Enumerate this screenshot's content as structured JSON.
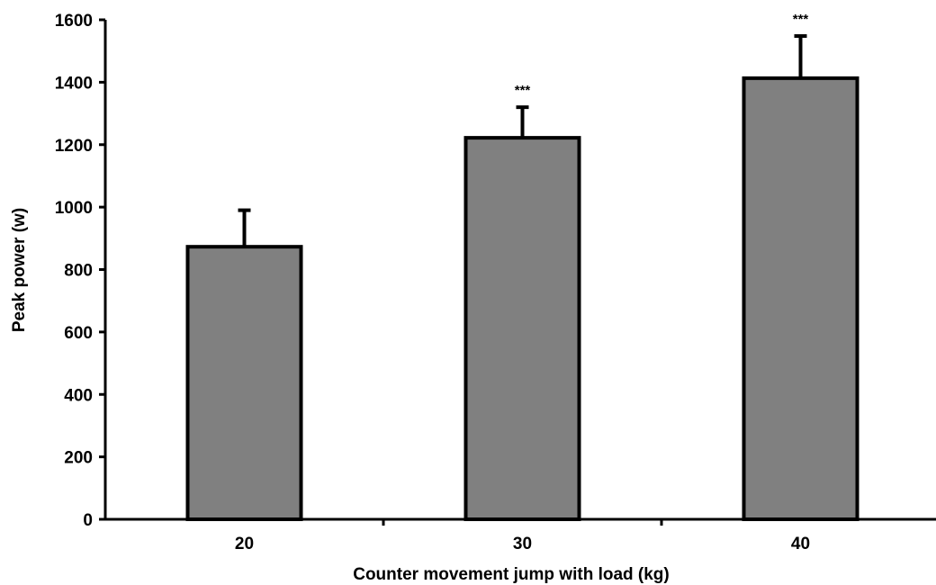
{
  "colors": {
    "bar_fill": "#808080",
    "bar_stroke": "#000000",
    "axis": "#000000",
    "background": "#ffffff"
  },
  "chart_data": {
    "type": "bar",
    "xlabel": "Counter movement jump with load (kg)",
    "ylabel": "Peak power (w)",
    "categories": [
      "20",
      "30",
      "40"
    ],
    "values": [
      873,
      1222,
      1413
    ],
    "error_upper": [
      990,
      1320,
      1548
    ],
    "annotations": [
      "",
      "***",
      "***"
    ],
    "ylim": [
      0,
      1600
    ],
    "yticks": [
      0,
      200,
      400,
      600,
      800,
      1000,
      1200,
      1400,
      1600
    ],
    "grid": false,
    "legend": "none"
  }
}
